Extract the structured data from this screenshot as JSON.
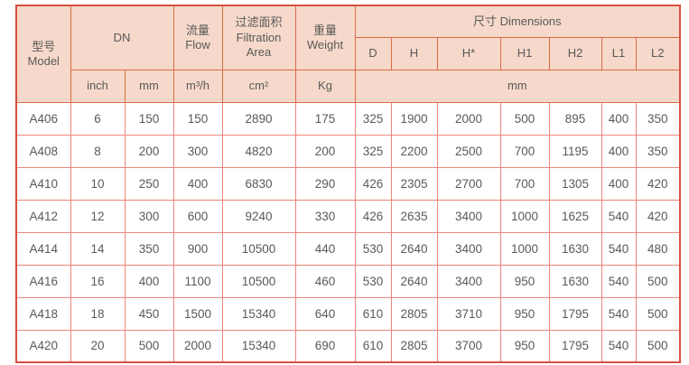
{
  "colors": {
    "header_bg": "#f6d9ca",
    "header_border": "#dd6a45",
    "outer_border": "#dc4f41",
    "body_grid": "#ee8578",
    "text": "#595959"
  },
  "table": {
    "header": {
      "model_zh": "型号",
      "model_en": "Model",
      "dn": "DN",
      "flow_zh": "流量",
      "flow_en": "Flow",
      "filtration_zh": "过滤面积",
      "filtration_en_line1": "Filtration",
      "filtration_en_line2": "Area",
      "weight_zh": "重量",
      "weight_en": "Weight",
      "dimensions": "尺寸 Dimensions",
      "dim_cols": [
        "D",
        "H",
        "H*",
        "H1",
        "H2",
        "L1",
        "L2"
      ],
      "unit_inch": "inch",
      "unit_mm": "mm",
      "unit_flow": "m³/h",
      "unit_area": "cm²",
      "unit_weight": "Kg",
      "unit_dim": "mm"
    },
    "rows": [
      {
        "model": "A406",
        "values": [
          "6",
          "150",
          "150",
          "2890",
          "175",
          "325",
          "1900",
          "2000",
          "500",
          "895",
          "400",
          "350"
        ]
      },
      {
        "model": "A408",
        "values": [
          "8",
          "200",
          "300",
          "4820",
          "200",
          "325",
          "2200",
          "2500",
          "700",
          "1195",
          "400",
          "350"
        ]
      },
      {
        "model": "A410",
        "values": [
          "10",
          "250",
          "400",
          "6830",
          "290",
          "426",
          "2305",
          "2700",
          "700",
          "1305",
          "400",
          "420"
        ]
      },
      {
        "model": "A412",
        "values": [
          "12",
          "300",
          "600",
          "9240",
          "330",
          "426",
          "2635",
          "3400",
          "1000",
          "1625",
          "540",
          "420"
        ]
      },
      {
        "model": "A414",
        "values": [
          "14",
          "350",
          "900",
          "10500",
          "440",
          "530",
          "2640",
          "3400",
          "1000",
          "1630",
          "540",
          "480"
        ]
      },
      {
        "model": "A416",
        "values": [
          "16",
          "400",
          "1100",
          "10500",
          "460",
          "530",
          "2640",
          "3400",
          "950",
          "1630",
          "540",
          "500"
        ]
      },
      {
        "model": "A418",
        "values": [
          "18",
          "450",
          "1500",
          "15340",
          "640",
          "610",
          "2805",
          "3710",
          "950",
          "1795",
          "540",
          "500"
        ]
      },
      {
        "model": "A420",
        "values": [
          "20",
          "500",
          "2000",
          "15340",
          "690",
          "610",
          "2805",
          "3700",
          "950",
          "1795",
          "540",
          "500"
        ]
      }
    ]
  }
}
